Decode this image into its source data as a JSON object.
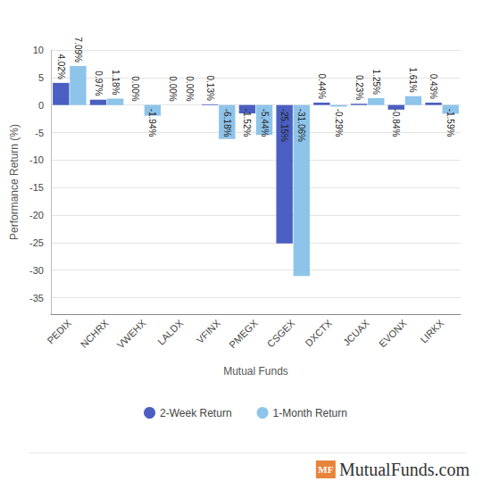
{
  "chart_data": {
    "type": "bar",
    "y_label": "Performance Return (%)",
    "x_label": "Mutual Funds",
    "categories": [
      "PEDIX",
      "NCHRX",
      "VWEHX",
      "LALDX",
      "VFINX",
      "PMEGX",
      "CSGEX",
      "DXCTX",
      "JCUAX",
      "EVONX",
      "LIRKX"
    ],
    "series": [
      {
        "name": "2-Week Return",
        "color": "#4a5fc1",
        "values": [
          4.02,
          0.97,
          0.0,
          0.0,
          0.13,
          -1.52,
          -25.15,
          0.44,
          0.23,
          -0.84,
          0.43
        ],
        "value_labels": [
          "4.02%",
          "0.97%",
          "0.00%",
          "0.00%",
          "0.13%",
          "-1.52%",
          "-25.15%",
          "0.44%",
          "0.23%",
          "-0.84%",
          "0.43%"
        ]
      },
      {
        "name": "1-Month Return",
        "color": "#8ec4ea",
        "values": [
          7.09,
          1.18,
          -1.94,
          0.0,
          -6.18,
          -5.44,
          -31.06,
          -0.29,
          1.25,
          1.61,
          -1.59
        ],
        "value_labels": [
          "7.09%",
          "1.18%",
          "-1.94%",
          "0.00%",
          "-6.18%",
          "-5.44%",
          "-31.06%",
          "-0.29%",
          "1.25%",
          "1.61%",
          "-1.59%"
        ]
      }
    ],
    "ylim": [
      -38,
      10
    ],
    "yticks": [
      -35,
      -30,
      -25,
      -20,
      -15,
      -10,
      -5,
      0,
      5,
      10
    ],
    "grid": true,
    "legend": "bottom",
    "data_labels": true,
    "annotations": [
      "MF",
      "MutualFunds.com"
    ]
  }
}
